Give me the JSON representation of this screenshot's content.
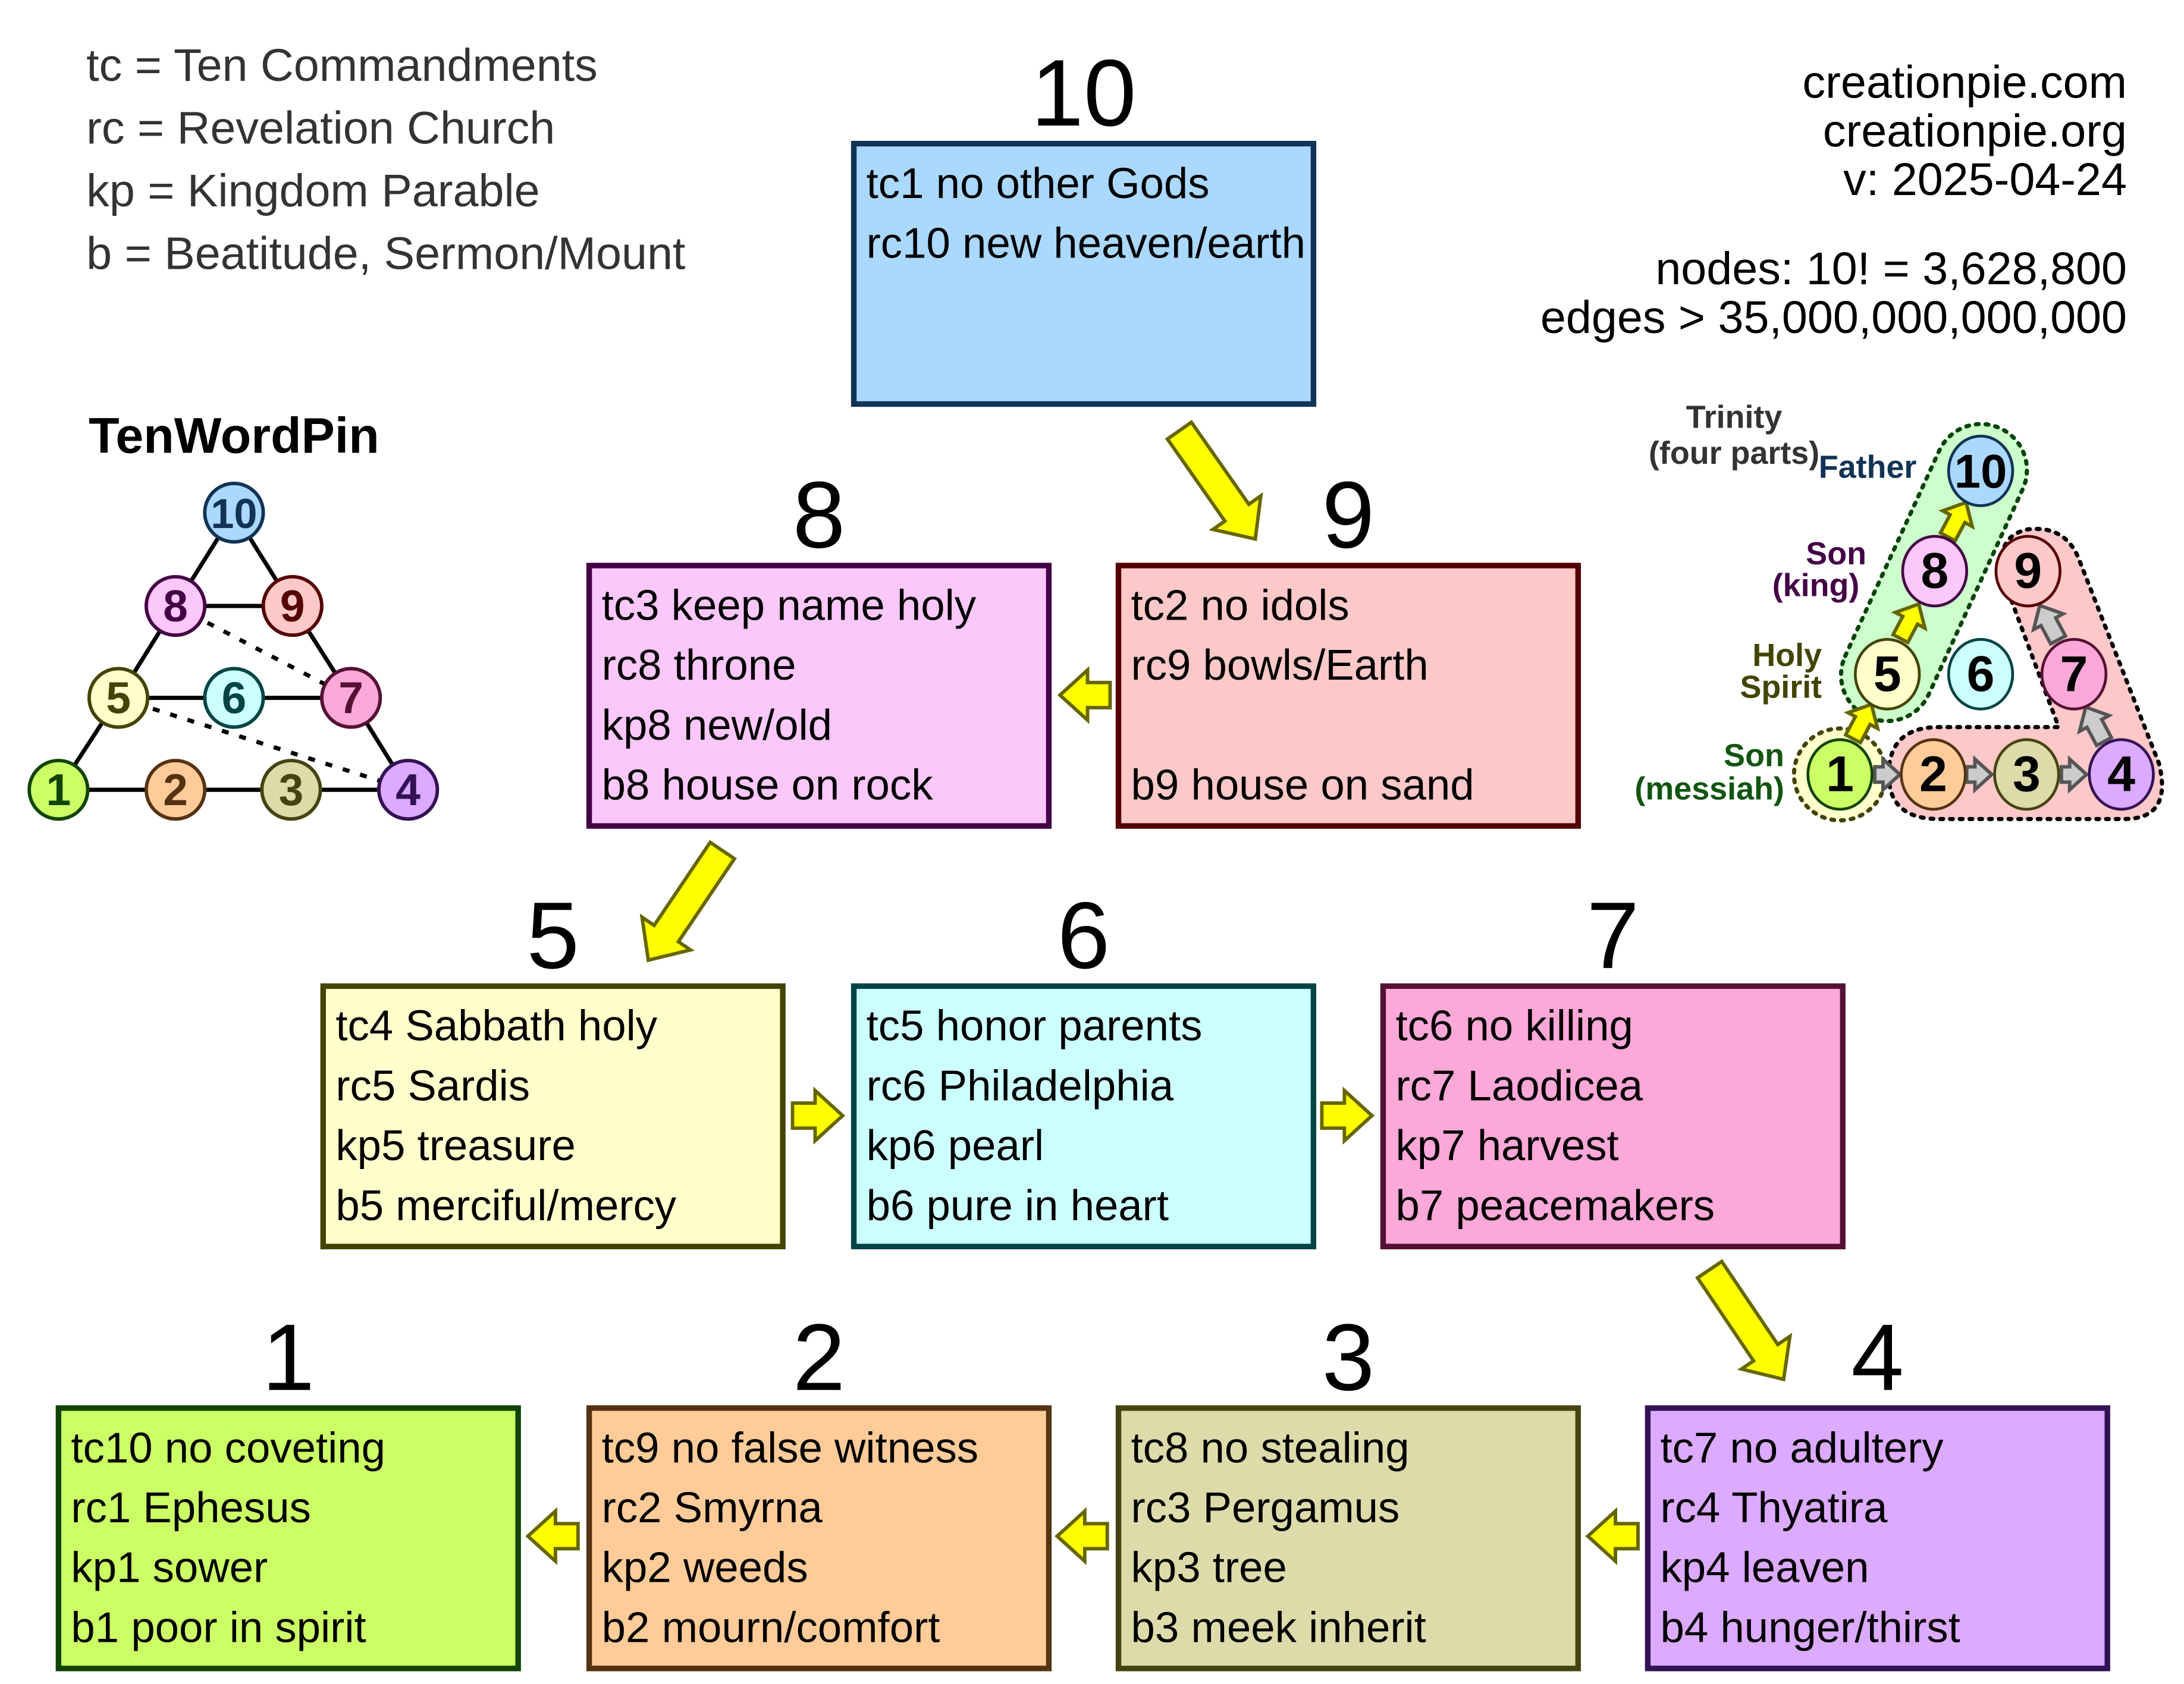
{
  "legend": [
    "tc = Ten Commandments",
    "rc = Revelation Church",
    "kp = Kingdom Parable",
    "b = Beatitude, Sermon/Mount"
  ],
  "site": [
    "creationpie.com",
    "creationpie.org",
    "v: 2025-04-24"
  ],
  "stats": [
    "nodes: 10! = 3,628,800",
    "edges > 35,000,000,000,000"
  ],
  "pin": {
    "title": "TenWordPin",
    "nodes": [
      {
        "n": "10",
        "fill": "#aad8ff",
        "stroke": "#113355"
      },
      {
        "n": "8",
        "fill": "#fcc8fc",
        "stroke": "#440044"
      },
      {
        "n": "9",
        "fill": "#fcc8c8",
        "stroke": "#550000"
      },
      {
        "n": "5",
        "fill": "#ffffcc",
        "stroke": "#444400"
      },
      {
        "n": "6",
        "fill": "#ccffff",
        "stroke": "#004444"
      },
      {
        "n": "7",
        "fill": "#fca8d8",
        "stroke": "#551133"
      },
      {
        "n": "1",
        "fill": "#ccff66",
        "stroke": "#114400"
      },
      {
        "n": "2",
        "fill": "#ffcc99",
        "stroke": "#553311"
      },
      {
        "n": "3",
        "fill": "#dddbaa",
        "stroke": "#444411"
      },
      {
        "n": "4",
        "fill": "#dcaaff",
        "stroke": "#331155"
      }
    ]
  },
  "trinity": {
    "title": [
      "Trinity",
      "(four parts)"
    ],
    "father": "Father",
    "son_king": [
      "Son",
      "(king)"
    ],
    "holy_spirit": [
      "Holy",
      "Spirit"
    ],
    "son_messiah": [
      "Son",
      "(messiah)"
    ],
    "colors": {
      "father": "#113355",
      "son_king": "#440044",
      "holy_spirit": "#444400",
      "son_messiah": "#115511"
    }
  },
  "boxes": [
    {
      "n": "10",
      "fill": "#aad8ff",
      "stroke": "#113355",
      "lines": [
        "tc1 no other Gods",
        "rc10 new heaven/earth",
        "",
        ""
      ]
    },
    {
      "n": "8",
      "fill": "#fcc8fc",
      "stroke": "#440044",
      "lines": [
        "tc3 keep name holy",
        "rc8 throne",
        "kp8 new/old",
        "b8 house on rock"
      ]
    },
    {
      "n": "9",
      "fill": "#fcc8c8",
      "stroke": "#550000",
      "lines": [
        "tc2 no idols",
        "rc9 bowls/Earth",
        "",
        "b9 house on sand"
      ]
    },
    {
      "n": "5",
      "fill": "#ffffcc",
      "stroke": "#444400",
      "lines": [
        "tc4 Sabbath holy",
        "rc5 Sardis",
        "kp5 treasure",
        "b5 merciful/mercy"
      ]
    },
    {
      "n": "6",
      "fill": "#ccffff",
      "stroke": "#004444",
      "lines": [
        "tc5 honor parents",
        "rc6 Philadelphia",
        "kp6 pearl",
        "b6 pure in heart"
      ]
    },
    {
      "n": "7",
      "fill": "#fca8d8",
      "stroke": "#551133",
      "lines": [
        "tc6 no killing",
        "rc7 Laodicea",
        "kp7 harvest",
        "b7 peacemakers"
      ]
    },
    {
      "n": "1",
      "fill": "#ccff66",
      "stroke": "#114400",
      "lines": [
        "tc10 no coveting",
        "rc1 Ephesus",
        "kp1 sower",
        "b1 poor in spirit"
      ]
    },
    {
      "n": "2",
      "fill": "#ffcc99",
      "stroke": "#553311",
      "lines": [
        "tc9 no false witness",
        "rc2 Smyrna",
        "kp2 weeds",
        "b2 mourn/comfort"
      ]
    },
    {
      "n": "3",
      "fill": "#dddbaa",
      "stroke": "#444411",
      "lines": [
        "tc8 no stealing",
        "rc3 Pergamus",
        "kp3 tree",
        "b3 meek inherit"
      ]
    },
    {
      "n": "4",
      "fill": "#dcaaff",
      "stroke": "#331155",
      "lines": [
        "tc7 no adultery",
        "rc4 Thyatira",
        "kp4 leaven",
        "b4 hunger/thirst"
      ]
    }
  ],
  "colors": {
    "arrow": "#ffff00",
    "arrow_stroke": "#666600",
    "gray_arrow": "#cccccc",
    "text": "#333333"
  }
}
